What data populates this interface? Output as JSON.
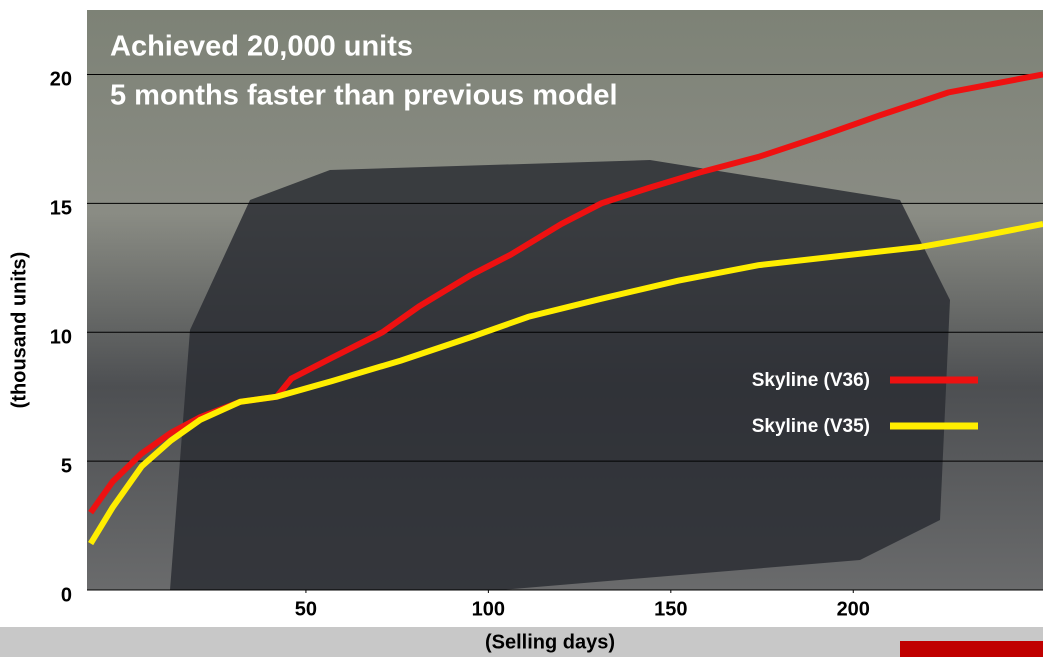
{
  "chart_data": {
    "type": "line",
    "title": "Achieved 20,000 units",
    "subtitle": "5 months faster than previous model",
    "xlabel": "(Selling days)",
    "ylabel": "(thousand units)",
    "xlim": [
      -10,
      252
    ],
    "xticks": [
      50,
      100,
      150,
      200
    ],
    "ylim": [
      0,
      22.5
    ],
    "yticks": [
      0,
      5,
      10,
      15,
      20
    ],
    "grid": true,
    "legend": "center right",
    "series": [
      {
        "name": "Skyline (V36)",
        "color": "#ee1111",
        "x": [
          -9,
          -3,
          5,
          13,
          21,
          32,
          42,
          46,
          57,
          71,
          81,
          95,
          106,
          120,
          131,
          144,
          158,
          174,
          191,
          207,
          226,
          252
        ],
        "values": [
          3.0,
          4.2,
          5.3,
          6.1,
          6.7,
          7.3,
          7.5,
          8.2,
          9.0,
          10.0,
          11.0,
          12.2,
          13.0,
          14.2,
          15.0,
          15.6,
          16.2,
          16.8,
          17.6,
          18.4,
          19.3,
          20.0
        ]
      },
      {
        "name": "Skyline (V35)",
        "color": "#ffee00",
        "x": [
          -9,
          -3,
          5,
          13,
          21,
          32,
          42,
          57,
          76,
          95,
          111,
          131,
          152,
          174,
          199,
          218,
          234,
          252
        ],
        "values": [
          1.8,
          3.2,
          4.8,
          5.8,
          6.6,
          7.3,
          7.5,
          8.1,
          8.9,
          9.8,
          10.6,
          11.3,
          12.0,
          12.6,
          13.0,
          13.3,
          13.7,
          14.2
        ]
      }
    ]
  }
}
